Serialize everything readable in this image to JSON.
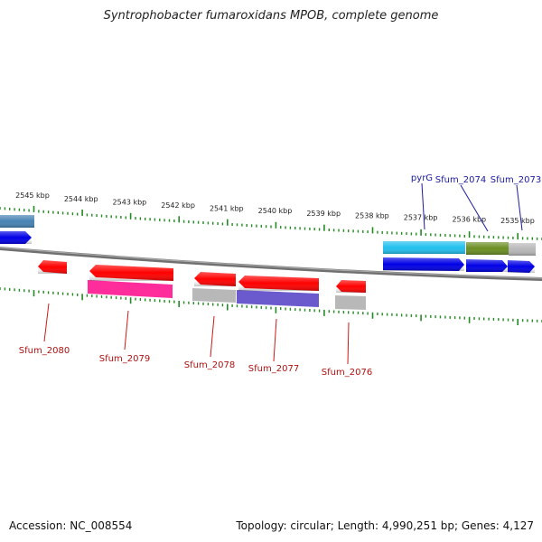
{
  "title": "Syntrophobacter fumaroxidans MPOB, complete genome",
  "footer": {
    "accession": "Accession: NC_008554",
    "stats": "Topology: circular; Length: 4,990,251 bp; Genes: 4,127"
  },
  "kbp_labels": [
    {
      "label": "2545 kbp",
      "pos_kbp": 2545
    },
    {
      "label": "2544 kbp",
      "pos_kbp": 2544
    },
    {
      "label": "2543 kbp",
      "pos_kbp": 2543
    },
    {
      "label": "2542 kbp",
      "pos_kbp": 2542
    },
    {
      "label": "2541 kbp",
      "pos_kbp": 2541
    },
    {
      "label": "2540 kbp",
      "pos_kbp": 2540
    },
    {
      "label": "2539 kbp",
      "pos_kbp": 2539
    },
    {
      "label": "2538 kbp",
      "pos_kbp": 2538
    },
    {
      "label": "2537 kbp",
      "pos_kbp": 2537
    },
    {
      "label": "2536 kbp",
      "pos_kbp": 2536
    },
    {
      "label": "2535 kbp",
      "pos_kbp": 2535
    }
  ],
  "gene_labels_top": [
    {
      "name": "pyrG",
      "color": "#1a1aa0"
    },
    {
      "name": "Sfum_2074",
      "color": "#1a1aa0"
    },
    {
      "name": "Sfum_2073",
      "color": "#1a1aa0"
    }
  ],
  "gene_labels_bottom": [
    {
      "name": "Sfum_2080",
      "color": "#b01010"
    },
    {
      "name": "Sfum_2079",
      "color": "#b01010"
    },
    {
      "name": "Sfum_2078",
      "color": "#b01010"
    },
    {
      "name": "Sfum_2077",
      "color": "#b01010"
    },
    {
      "name": "Sfum_2076",
      "color": "#b01010"
    }
  ],
  "colors": {
    "reverse_strand": "#ff0000",
    "forward_strand": "#0000e6",
    "backbone": "#808080",
    "ticks": "#228b22",
    "cog_cyan": "#22c0ee",
    "cog_olive": "#6b8e23",
    "cog_gray": "#b8b8b8",
    "cog_pink": "#ff2d9b",
    "cog_purple": "#6a5acd",
    "cog_steel": "#4682b4"
  }
}
